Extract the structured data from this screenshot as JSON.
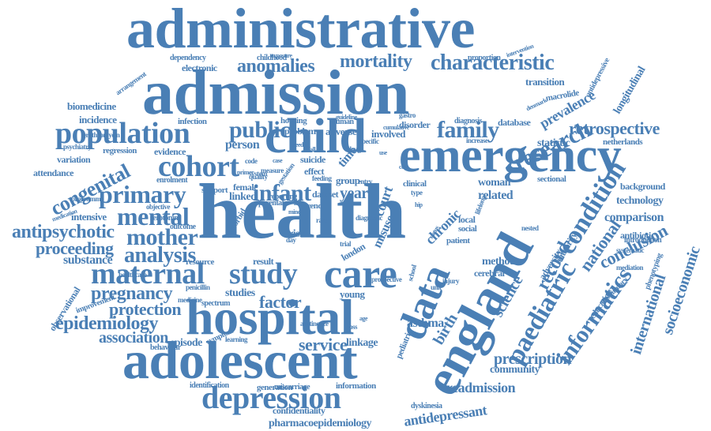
{
  "color": "#4a7fb5",
  "words": [
    "administrative",
    "admission",
    "health",
    "child",
    "emergency",
    "hospital",
    "adolescent",
    "england",
    "care",
    "data",
    "cohort",
    "population",
    "maternal",
    "study",
    "depression",
    "paediatric",
    "mortality",
    "characteristic",
    "anomalies",
    "family",
    "research",
    "public",
    "primary",
    "mental",
    "mother",
    "analysis",
    "congenital",
    "antipsychotic",
    "proceeding",
    "infant",
    "pregnancy",
    "protection",
    "epidemiology",
    "association",
    "service",
    "factor",
    "informatics",
    "retrospective",
    "condition",
    "record",
    "national",
    "science",
    "birth",
    "conclusion",
    "international",
    "socioeconomic",
    "prescription",
    "readmission",
    "antidepressant",
    "pharmacoepidemiology",
    "confidentiality",
    "community",
    "linkage",
    "asthma",
    "episode",
    "prevalence",
    "longitudinal",
    "transition",
    "technology",
    "comparison",
    "background",
    "biomedicine",
    "incidence",
    "electronic",
    "dependency",
    "childhood",
    "arrangement",
    "woman",
    "related",
    "intensive",
    "substance",
    "attendance",
    "variation",
    "evidence",
    "statistic",
    "netherlands",
    "studies",
    "year",
    "time",
    "court",
    "chronic",
    "local",
    "social",
    "method",
    "cerebral",
    "young",
    "misuse",
    "suicide",
    "effect",
    "problem",
    "adverse",
    "involved",
    "disorder",
    "human",
    "housing",
    "infection",
    "diagnosis",
    "database",
    "increase",
    "sectional",
    "antibiotic",
    "authority",
    "adversity",
    "education",
    "respiratory",
    "phenotyping",
    "introduction",
    "systematic",
    "mediation",
    "proportion",
    "intervention",
    "macrolide",
    "antidepressive",
    "denmark",
    "generation",
    "identification",
    "information",
    "miscarriage",
    "dyskinesia",
    "behaviour",
    "symptom",
    "improvement",
    "observational",
    "medication",
    "programme",
    "serotonin",
    "outcome",
    "enrolment",
    "regression",
    "erythromycin",
    "psychiatry",
    "healthcare",
    "resource",
    "result",
    "person",
    "female",
    "linked",
    "support",
    "group",
    "entry",
    "risk",
    "trend",
    "london",
    "pediatric",
    "patient",
    "school",
    "injury",
    "spectrum",
    "penicillin",
    "medicine",
    "abstinence",
    "learning",
    "quality",
    "objective",
    "gestation",
    "comorbid",
    "parental",
    "system",
    "exposure",
    "cumulative",
    "gastro",
    "guideline",
    "diagnostic",
    "nested",
    "status",
    "lifelong",
    "prospective",
    "reporting",
    "code",
    "measure",
    "dataset",
    "primer",
    "clinical",
    "drug",
    "feeding",
    "specific",
    "rate",
    "type",
    "day",
    "trial",
    "loss",
    "unit",
    "age",
    "case",
    "fall",
    "use",
    "mind",
    "need",
    "cost",
    "fail",
    "hip",
    "sex",
    "gap",
    "trust"
  ]
}
